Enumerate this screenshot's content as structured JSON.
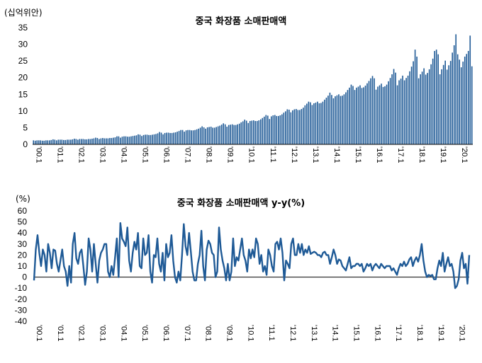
{
  "chart_data": [
    {
      "type": "bar",
      "title": "중국 화장품 소매판매액",
      "unit_label": "(십억위안)",
      "ylim": [
        0,
        35
      ],
      "yticks": [
        "0",
        "5",
        "10",
        "15",
        "20",
        "25",
        "30",
        "35"
      ],
      "x_tick_labels": [
        "'00.1",
        "'01.1",
        "'02.1",
        "'03.1",
        "'04.1",
        "'05.1",
        "'06.1",
        "'07.1",
        "'08.1",
        "'09.1",
        "'10.1",
        "'11.1",
        "'12.1",
        "'13.1",
        "'14.1",
        "'15.1",
        "'16.1",
        "'17.1",
        "'18.1",
        "'19.1",
        "'20.1"
      ],
      "color": "#1F5A96",
      "x_start": "2000-01",
      "series": [
        {
          "values": [
            1.2,
            1.1,
            1.2,
            1.2,
            1.2,
            1.1,
            1.1,
            1.2,
            1.2,
            1.2,
            1.3,
            1.5,
            1.4,
            1.2,
            1.4,
            1.4,
            1.4,
            1.3,
            1.3,
            1.4,
            1.4,
            1.4,
            1.5,
            1.7,
            1.6,
            1.4,
            1.6,
            1.6,
            1.6,
            1.5,
            1.5,
            1.6,
            1.6,
            1.7,
            1.8,
            2.0,
            1.9,
            1.6,
            1.8,
            1.9,
            1.8,
            1.8,
            1.8,
            1.9,
            1.9,
            2.0,
            2.1,
            2.4,
            2.4,
            2.0,
            2.3,
            2.4,
            2.4,
            2.3,
            2.3,
            2.4,
            2.5,
            2.6,
            2.7,
            3.0,
            2.9,
            2.5,
            2.8,
            2.9,
            2.9,
            2.8,
            2.8,
            2.9,
            3.0,
            3.1,
            3.3,
            3.7,
            3.5,
            3.0,
            3.4,
            3.5,
            3.5,
            3.4,
            3.4,
            3.5,
            3.6,
            3.8,
            4.0,
            4.3,
            4.3,
            3.8,
            4.2,
            4.3,
            4.3,
            4.2,
            4.2,
            4.3,
            4.5,
            4.7,
            5.0,
            5.4,
            5.1,
            4.7,
            5.1,
            5.2,
            5.3,
            5.0,
            5.0,
            5.2,
            5.4,
            5.6,
            5.9,
            6.3,
            6.0,
            5.3,
            5.8,
            5.9,
            6.0,
            5.8,
            5.8,
            6.0,
            6.2,
            6.6,
            6.9,
            7.4,
            7.1,
            6.4,
            7.0,
            7.1,
            7.2,
            7.0,
            7.0,
            7.2,
            7.5,
            7.9,
            8.3,
            8.8,
            8.6,
            7.6,
            8.4,
            8.7,
            8.8,
            8.5,
            8.5,
            8.7,
            9.0,
            9.5,
            9.9,
            10.5,
            10.4,
            9.6,
            10.2,
            10.5,
            10.6,
            10.3,
            10.3,
            10.6,
            11.0,
            11.7,
            12.2,
            12.8,
            12.6,
            11.8,
            12.3,
            12.5,
            12.8,
            12.3,
            12.4,
            12.8,
            13.4,
            14.0,
            14.6,
            15.5,
            14.8,
            13.8,
            14.4,
            14.7,
            15.0,
            14.5,
            14.6,
            15.0,
            15.6,
            16.3,
            17.0,
            17.9,
            17.5,
            16.3,
            17.0,
            17.3,
            17.7,
            16.9,
            17.1,
            17.6,
            18.3,
            19.0,
            19.8,
            20.5,
            19.8,
            16.4,
            17.3,
            17.7,
            18.2,
            17.2,
            17.4,
            17.9,
            18.9,
            19.9,
            21.0,
            22.6,
            21.5,
            17.7,
            19.2,
            19.7,
            20.6,
            19.2,
            19.9,
            20.6,
            21.9,
            23.3,
            24.9,
            28.4,
            26.3,
            19.8,
            21.0,
            21.8,
            22.8,
            20.9,
            21.4,
            22.5,
            24.0,
            25.7,
            28.0,
            28.4,
            27.0,
            21.0,
            22.5,
            23.8,
            25.1,
            22.4,
            23.7,
            25.0,
            27.5,
            29.7,
            33.0,
            27.0,
            25.4,
            23.1,
            24.8,
            26.3,
            27.1,
            28.0,
            32.6,
            23.4
          ]
        }
      ]
    },
    {
      "type": "line",
      "title": "중국 화장품 소매판매액 y-y(%)",
      "unit_label": "(%)",
      "ylim": [
        -40,
        60
      ],
      "yticks": [
        "-40",
        "-30",
        "-20",
        "-10",
        "0",
        "10",
        "20",
        "30",
        "40",
        "50",
        "60"
      ],
      "x_tick_labels": [
        "'00.1",
        "'01.1",
        "'02.1",
        "'03.1",
        "'04.1",
        "'05.1",
        "'06.1",
        "'07.1",
        "'08.1",
        "'09.1",
        "'10.1",
        "'11.1",
        "'12.1",
        "'13.1",
        "'14.1",
        "'15.1",
        "'16.1",
        "'17.1",
        "'18.1",
        "'19.1",
        "'20.1"
      ],
      "color": "#1F5A96",
      "x_start": "2000-01",
      "series": [
        {
          "values": [
            -3,
            25,
            38,
            22,
            10,
            25,
            20,
            5,
            30,
            22,
            8,
            25,
            24,
            12,
            5,
            15,
            25,
            10,
            5,
            -8,
            10,
            -5,
            30,
            40,
            17,
            12,
            22,
            25,
            10,
            -7,
            5,
            35,
            25,
            5,
            30,
            12,
            -5,
            15,
            22,
            25,
            30,
            30,
            5,
            0,
            10,
            2,
            18,
            35,
            0,
            49,
            35,
            32,
            28,
            45,
            15,
            5,
            22,
            32,
            25,
            40,
            10,
            8,
            35,
            20,
            22,
            38,
            5,
            -5,
            20,
            18,
            35,
            12,
            5,
            22,
            -3,
            30,
            18,
            22,
            38,
            15,
            0,
            -5,
            5,
            -3,
            20,
            48,
            28,
            20,
            40,
            23,
            5,
            -3,
            -3,
            12,
            20,
            42,
            10,
            -3,
            25,
            33,
            30,
            22,
            20,
            0,
            5,
            45,
            25,
            15,
            8,
            -3,
            12,
            -3,
            5,
            35,
            10,
            18,
            15,
            25,
            35,
            20,
            15,
            5,
            25,
            17,
            25,
            18,
            35,
            30,
            12,
            20,
            5,
            10,
            2,
            25,
            20,
            10,
            5,
            30,
            32,
            25,
            35,
            22,
            -3,
            15,
            12,
            8,
            30,
            35,
            20,
            20,
            30,
            22,
            30,
            20,
            25,
            22,
            28,
            21,
            22,
            23,
            22,
            20,
            20,
            18,
            22,
            23,
            20,
            20,
            12,
            18,
            25,
            20,
            12,
            16,
            15,
            10,
            8,
            6,
            12,
            18,
            8,
            10,
            10,
            12,
            12,
            10,
            12,
            5,
            8,
            12,
            10,
            12,
            6,
            10,
            12,
            10,
            8,
            12,
            10,
            8,
            10,
            10,
            10,
            6,
            8,
            5,
            2,
            8,
            12,
            10,
            14,
            10,
            12,
            16,
            18,
            10,
            15,
            18,
            14,
            20,
            30,
            15,
            5,
            0,
            2,
            1,
            2,
            -2,
            -2,
            8,
            15,
            10,
            22,
            5,
            12,
            18,
            10,
            12,
            5,
            -10,
            -8,
            -2,
            15,
            22,
            8,
            12,
            -6,
            20
          ]
        }
      ]
    }
  ]
}
